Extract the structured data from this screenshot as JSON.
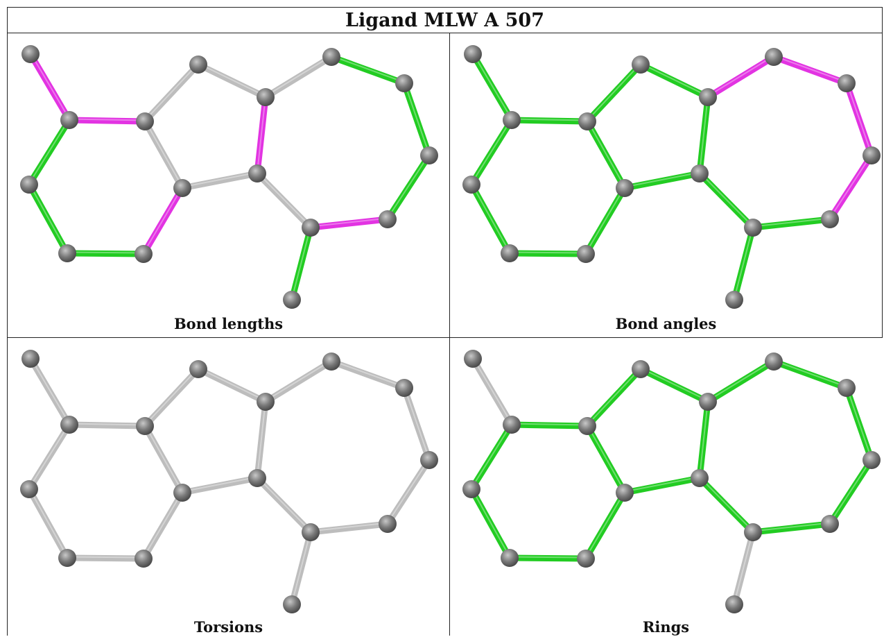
{
  "title": "Ligand MLW A 507",
  "panels": [
    {
      "caption": "Bond lengths"
    },
    {
      "caption": "Bond angles"
    },
    {
      "caption": "Torsions"
    },
    {
      "caption": "Rings"
    }
  ],
  "colors": {
    "green": "#22cc22",
    "magenta": "#e233e2",
    "grey": "#bdbdbd",
    "atom": "#7a7a7a"
  },
  "bonds": [
    [
      0,
      1
    ],
    [
      1,
      2
    ],
    [
      1,
      3
    ],
    [
      3,
      4
    ],
    [
      4,
      5
    ],
    [
      5,
      6
    ],
    [
      6,
      2
    ],
    [
      2,
      7
    ],
    [
      7,
      8
    ],
    [
      8,
      9
    ],
    [
      9,
      6
    ],
    [
      8,
      10
    ],
    [
      10,
      11
    ],
    [
      11,
      12
    ],
    [
      12,
      13
    ],
    [
      13,
      14
    ],
    [
      14,
      15
    ],
    [
      15,
      9
    ],
    [
      15,
      16
    ]
  ],
  "bond_colors": {
    "bond_lengths": [
      "magenta",
      "magenta",
      "green",
      "green",
      "green",
      "magenta",
      "grey",
      "grey",
      "grey",
      "magenta",
      "grey",
      "grey",
      "green",
      "green",
      "green",
      "green",
      "magenta",
      "grey",
      "green"
    ],
    "bond_angles": [
      "green",
      "green",
      "green",
      "green",
      "green",
      "green",
      "green",
      "green",
      "green",
      "green",
      "green",
      "magenta",
      "magenta",
      "magenta",
      "magenta",
      "magenta",
      "green",
      "green",
      "green"
    ],
    "torsions": [
      "grey",
      "grey",
      "grey",
      "grey",
      "grey",
      "grey",
      "grey",
      "grey",
      "grey",
      "grey",
      "grey",
      "grey",
      "grey",
      "grey",
      "grey",
      "grey",
      "grey",
      "grey",
      "grey"
    ],
    "rings": [
      "grey",
      "green",
      "green",
      "green",
      "green",
      "green",
      "green",
      "green",
      "green",
      "green",
      "green",
      "green",
      "green",
      "green",
      "green",
      "green",
      "green",
      "green",
      "grey"
    ]
  }
}
